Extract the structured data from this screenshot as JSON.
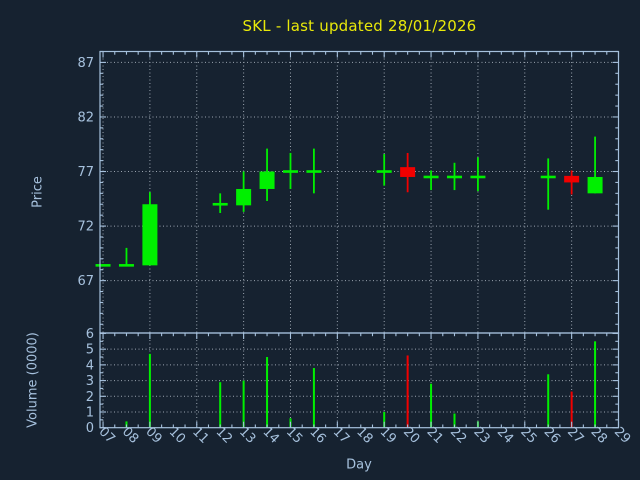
{
  "chart_data": {
    "type": "candlestick",
    "title": "SKL - last updated 28/01/2026",
    "xlabel": "Day",
    "legend": "none",
    "grid": "dotted",
    "price_axis": {
      "label": "Price",
      "ticks": [
        67,
        72,
        77,
        82,
        87
      ],
      "ylim": [
        62.2,
        88.0
      ]
    },
    "volume_axis": {
      "label": "Volume (0000)",
      "ticks": [
        0,
        1,
        2,
        3,
        4,
        5,
        6
      ],
      "ylim": [
        0,
        6.03
      ]
    },
    "x_axis": {
      "tick_labels": [
        "07",
        "08",
        "09",
        "10",
        "11",
        "12",
        "13",
        "14",
        "15",
        "16",
        "17",
        "18",
        "19",
        "20",
        "21",
        "22",
        "23",
        "24",
        "25",
        "26",
        "27",
        "28",
        "29"
      ],
      "first_day": 7,
      "last_day": 29,
      "xlim": [
        6.87,
        29.0
      ],
      "gridline_days": [
        7,
        9,
        11,
        13,
        15,
        17,
        19,
        21,
        23,
        25,
        27,
        29
      ]
    },
    "candles": [
      {
        "day": 7,
        "open": 68.4,
        "high": 68.4,
        "low": 68.4,
        "close": 68.4,
        "volume": 0,
        "direction": "up"
      },
      {
        "day": 8,
        "open": 68.4,
        "high": 70.0,
        "low": 68.4,
        "close": 68.4,
        "volume": 0.4,
        "direction": "up"
      },
      {
        "day": 9,
        "open": 68.4,
        "high": 75.1,
        "low": 68.4,
        "close": 74.0,
        "volume": 4.7,
        "direction": "up"
      },
      {
        "day": 12,
        "open": 74.0,
        "high": 75.0,
        "low": 73.2,
        "close": 74.0,
        "volume": 2.9,
        "direction": "up"
      },
      {
        "day": 13,
        "open": 73.9,
        "high": 77.0,
        "low": 73.3,
        "close": 75.4,
        "volume": 3.0,
        "direction": "up"
      },
      {
        "day": 14,
        "open": 75.4,
        "high": 79.1,
        "low": 74.3,
        "close": 77.0,
        "volume": 4.5,
        "direction": "up"
      },
      {
        "day": 15,
        "open": 77.0,
        "high": 78.7,
        "low": 75.4,
        "close": 77.0,
        "volume": 0.6,
        "direction": "up"
      },
      {
        "day": 16,
        "open": 77.0,
        "high": 79.1,
        "low": 75.0,
        "close": 77.0,
        "volume": 3.8,
        "direction": "up"
      },
      {
        "day": 19,
        "open": 77.0,
        "high": 78.6,
        "low": 75.7,
        "close": 77.0,
        "volume": 1.0,
        "direction": "up"
      },
      {
        "day": 20,
        "open": 77.4,
        "high": 78.7,
        "low": 75.1,
        "close": 76.5,
        "volume": 4.6,
        "direction": "down"
      },
      {
        "day": 21,
        "open": 76.5,
        "high": 77.1,
        "low": 75.3,
        "close": 76.5,
        "volume": 2.8,
        "direction": "up"
      },
      {
        "day": 22,
        "open": 76.5,
        "high": 77.8,
        "low": 75.3,
        "close": 76.5,
        "volume": 0.9,
        "direction": "up"
      },
      {
        "day": 23,
        "open": 76.5,
        "high": 78.3,
        "low": 75.2,
        "close": 76.5,
        "volume": 0.4,
        "direction": "up"
      },
      {
        "day": 26,
        "open": 76.5,
        "high": 78.2,
        "low": 73.5,
        "close": 76.5,
        "volume": 3.4,
        "direction": "up"
      },
      {
        "day": 27,
        "open": 76.6,
        "high": 77.1,
        "low": 74.9,
        "close": 76.0,
        "volume": 2.3,
        "direction": "down"
      },
      {
        "day": 28,
        "open": 75.0,
        "high": 80.2,
        "low": 75.0,
        "close": 76.5,
        "volume": 5.5,
        "direction": "up"
      }
    ],
    "colors": {
      "up": "#00f000",
      "down": "#f20000",
      "background": "#162230",
      "axis": "#a6c1dd",
      "grid": "#9aa4af",
      "title": "#e9e90a"
    }
  }
}
